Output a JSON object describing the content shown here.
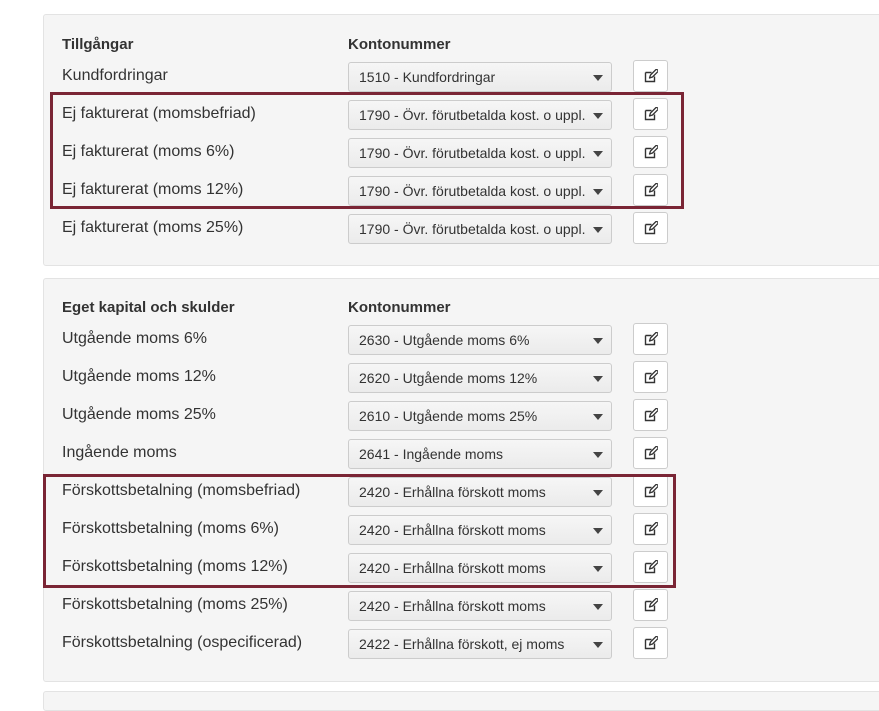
{
  "assets": {
    "header_label": "Tillgångar",
    "header_account": "Kontonummer",
    "rows": [
      {
        "label": "Kundfordringar",
        "account": "1510 - Kundfordringar"
      },
      {
        "label": "Ej fakturerat (momsbefriad)",
        "account": "1790 - Övr. förutbetalda kost. o uppl."
      },
      {
        "label": "Ej fakturerat (moms 6%)",
        "account": "1790 - Övr. förutbetalda kost. o uppl."
      },
      {
        "label": "Ej fakturerat (moms 12%)",
        "account": "1790 - Övr. förutbetalda kost. o uppl."
      },
      {
        "label": "Ej fakturerat (moms 25%)",
        "account": "1790 - Övr. förutbetalda kost. o uppl."
      }
    ]
  },
  "liabilities": {
    "header_label": "Eget kapital och skulder",
    "header_account": "Kontonummer",
    "rows": [
      {
        "label": "Utgående moms 6%",
        "account": "2630 - Utgående moms 6%"
      },
      {
        "label": "Utgående moms 12%",
        "account": "2620 - Utgående moms 12%"
      },
      {
        "label": "Utgående moms 25%",
        "account": "2610 - Utgående moms 25%"
      },
      {
        "label": "Ingående moms",
        "account": "2641 - Ingående moms"
      },
      {
        "label": "Förskottsbetalning (momsbefriad)",
        "account": "2420 - Erhållna förskott moms"
      },
      {
        "label": "Förskottsbetalning (moms 6%)",
        "account": "2420 - Erhållna förskott moms"
      },
      {
        "label": "Förskottsbetalning (moms 12%)",
        "account": "2420 - Erhållna förskott moms"
      },
      {
        "label": "Förskottsbetalning (moms 25%)",
        "account": "2420 - Erhållna förskott moms"
      },
      {
        "label": "Förskottsbetalning (ospecificerad)",
        "account": "2422 - Erhållna förskott, ej moms"
      }
    ]
  },
  "icons": {
    "edit": "edit-icon",
    "dropdown": "chevron-down-icon"
  },
  "colors": {
    "highlight": "#7a2535",
    "panel_bg": "#f5f5f5"
  }
}
